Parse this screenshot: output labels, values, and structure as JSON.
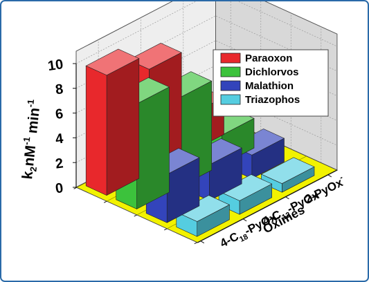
{
  "chart_data": {
    "type": "bar",
    "subtype": "3d-grouped-bar",
    "ylabel_parts": [
      "k",
      "2",
      "nM",
      "-1",
      " min",
      "-1"
    ],
    "xlabel": "Oximes",
    "yticks": [
      "0",
      "2",
      "4",
      "6",
      "8",
      "10"
    ],
    "ylim": [
      0,
      10
    ],
    "categories": [
      {
        "id": "c18",
        "parts": [
          "4-C",
          "18",
          "-PyOx",
          "-"
        ]
      },
      {
        "id": "c12",
        "parts": [
          "4-C",
          "12",
          "-PyOx",
          "-"
        ]
      },
      {
        "id": "py",
        "parts": [
          "2-PyOx",
          "",
          "",
          "-"
        ]
      }
    ],
    "series": [
      {
        "name": "Paraoxon",
        "color": "#e8282c",
        "values": [
          9.7,
          8.4,
          3.0
        ]
      },
      {
        "name": "Dichlorvos",
        "color": "#3cc23c",
        "values": [
          8.5,
          7.2,
          2.4
        ]
      },
      {
        "name": "Malathion",
        "color": "#3344bb",
        "values": [
          3.9,
          2.9,
          1.9
        ]
      },
      {
        "name": "Triazophos",
        "color": "#55cde0",
        "values": [
          1.2,
          1.1,
          0.7
        ]
      }
    ],
    "legend_position": "top-right",
    "grid": true,
    "floor_color": "#f2f200"
  }
}
